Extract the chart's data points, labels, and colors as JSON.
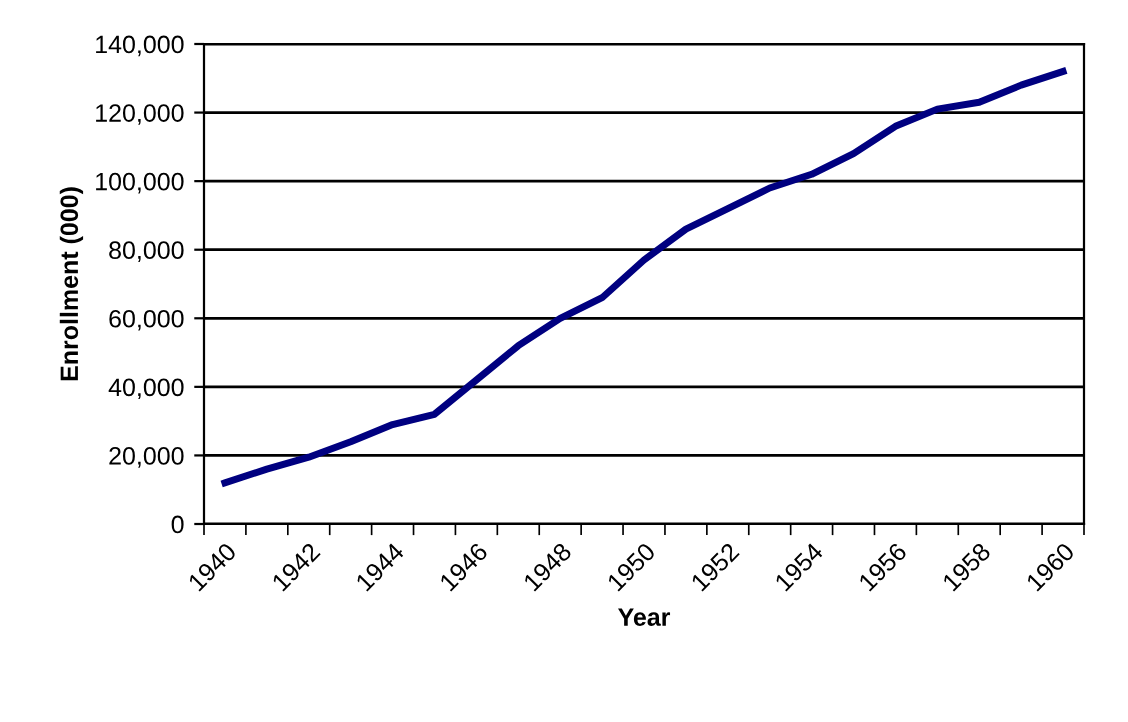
{
  "chart_data": {
    "type": "line",
    "xlabel": "Year",
    "ylabel": "Enrollment (000)",
    "categories": [
      "1940",
      null,
      "1942",
      null,
      "1944",
      null,
      "1946",
      null,
      "1948",
      null,
      "1950",
      null,
      "1952",
      null,
      "1954",
      null,
      "1956",
      null,
      "1958",
      null,
      "1960"
    ],
    "series": [
      {
        "color": "#000080",
        "values": [
          12000,
          16000,
          19500,
          24000,
          29000,
          32000,
          42000,
          52000,
          60000,
          66000,
          77000,
          86000,
          92000,
          98000,
          102000,
          108000,
          116000,
          121000,
          123000,
          128000,
          132000
        ]
      }
    ],
    "ylim": [
      0,
      140000
    ],
    "yticks": [
      {
        "value": 0,
        "label": "0"
      },
      {
        "value": 20000,
        "label": "20,000"
      },
      {
        "value": 40000,
        "label": "40,000"
      },
      {
        "value": 60000,
        "label": "60,000"
      },
      {
        "value": 80000,
        "label": "80,000"
      },
      {
        "value": 100000,
        "label": "100,000"
      },
      {
        "value": 120000,
        "label": "120,000"
      },
      {
        "value": 140000,
        "label": "140,000"
      }
    ],
    "grid": "y",
    "legend": false,
    "marker": "none",
    "line_style": "solid"
  }
}
